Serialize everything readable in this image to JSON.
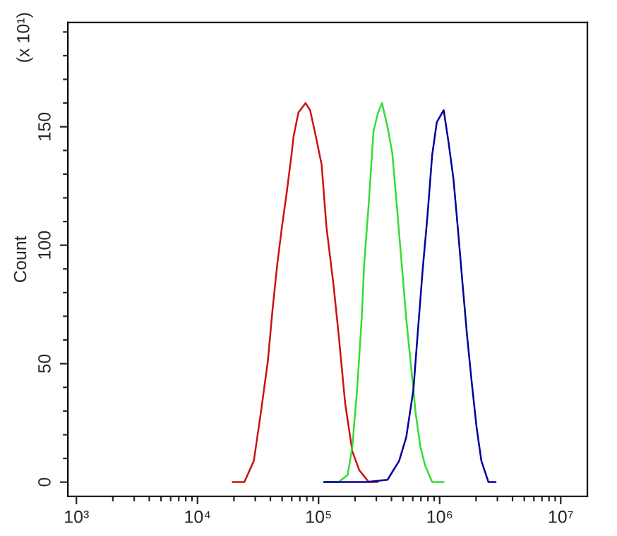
{
  "chart_data": {
    "type": "line",
    "ylabel": "Count",
    "annotations": [
      "(x 10¹)"
    ],
    "log": "x",
    "grid": false,
    "xlim": [
      850,
      16600000
    ],
    "ylim": [
      -6,
      194
    ],
    "xticks": [
      {
        "value": 1000,
        "label": "10³"
      },
      {
        "value": 2000,
        "label": null
      },
      {
        "value": 3000,
        "label": null
      },
      {
        "value": 4000,
        "label": null
      },
      {
        "value": 5000,
        "label": null
      },
      {
        "value": 6000,
        "label": null
      },
      {
        "value": 7000,
        "label": null
      },
      {
        "value": 8000,
        "label": null
      },
      {
        "value": 9000,
        "label": null
      },
      {
        "value": 10000,
        "label": "10⁴"
      },
      {
        "value": 20000,
        "label": null
      },
      {
        "value": 30000,
        "label": null
      },
      {
        "value": 40000,
        "label": null
      },
      {
        "value": 50000,
        "label": null
      },
      {
        "value": 60000,
        "label": null
      },
      {
        "value": 70000,
        "label": null
      },
      {
        "value": 80000,
        "label": null
      },
      {
        "value": 90000,
        "label": null
      },
      {
        "value": 100000,
        "label": "10⁵"
      },
      {
        "value": 200000,
        "label": null
      },
      {
        "value": 300000,
        "label": null
      },
      {
        "value": 400000,
        "label": null
      },
      {
        "value": 500000,
        "label": null
      },
      {
        "value": 600000,
        "label": null
      },
      {
        "value": 700000,
        "label": null
      },
      {
        "value": 800000,
        "label": null
      },
      {
        "value": 900000,
        "label": null
      },
      {
        "value": 1000000,
        "label": "10⁶"
      },
      {
        "value": 2000000,
        "label": null
      },
      {
        "value": 3000000,
        "label": null
      },
      {
        "value": 4000000,
        "label": null
      },
      {
        "value": 5000000,
        "label": null
      },
      {
        "value": 6000000,
        "label": null
      },
      {
        "value": 7000000,
        "label": null
      },
      {
        "value": 8000000,
        "label": null
      },
      {
        "value": 9000000,
        "label": null
      },
      {
        "value": 10000000,
        "label": "10⁷"
      }
    ],
    "yticks": [
      0,
      {
        "value": 10,
        "label": null
      },
      {
        "value": 20,
        "label": null
      },
      {
        "value": 30,
        "label": null
      },
      {
        "value": 40,
        "label": null
      },
      50,
      {
        "value": 60,
        "label": null
      },
      {
        "value": 70,
        "label": null
      },
      {
        "value": 80,
        "label": null
      },
      {
        "value": 90,
        "label": null
      },
      100,
      {
        "value": 110,
        "label": null
      },
      {
        "value": 120,
        "label": null
      },
      {
        "value": 130,
        "label": null
      },
      {
        "value": 140,
        "label": null
      },
      150,
      {
        "value": 160,
        "label": null
      },
      {
        "value": 170,
        "label": null
      },
      {
        "value": 180,
        "label": null
      },
      {
        "value": 190,
        "label": null
      }
    ],
    "series": [
      {
        "color": "#cc1111",
        "x": [
          19500,
          24400,
          29200,
          33300,
          38100,
          41700,
          45600,
          49900,
          54500,
          59700,
          62200,
          68200,
          78000,
          85100,
          93100,
          106000,
          116000,
          133000,
          146000,
          166000,
          190000,
          217000,
          260000,
          308000
        ],
        "values": [
          0,
          0,
          9,
          29,
          51,
          73,
          92,
          108,
          122,
          138,
          146,
          156,
          160,
          157,
          148,
          134,
          108,
          83,
          63,
          33,
          13,
          5,
          0,
          0
        ]
      },
      {
        "color": "#33dd33",
        "x": [
          111000,
          146000,
          174000,
          190000,
          208000,
          227000,
          238000,
          260000,
          284000,
          310000,
          334000,
          371000,
          406000,
          444000,
          486000,
          530000,
          580000,
          634000,
          693000,
          759000,
          867000,
          1080000
        ],
        "values": [
          0,
          0,
          3,
          15,
          39,
          69,
          92,
          118,
          148,
          156,
          160,
          150,
          139,
          116,
          92,
          69,
          49,
          29,
          15,
          7,
          0,
          0
        ]
      },
      {
        "color": "#000099",
        "x": [
          111000,
          248000,
          371000,
          463000,
          530000,
          607000,
          664000,
          725000,
          792000,
          867000,
          948000,
          1080000,
          1180000,
          1300000,
          1420000,
          1550000,
          1690000,
          1850000,
          2020000,
          2210000,
          2530000,
          2900000
        ],
        "values": [
          0,
          0,
          1,
          9,
          19,
          39,
          65,
          90,
          112,
          138,
          152,
          157,
          144,
          128,
          106,
          83,
          61,
          41,
          23,
          9,
          0,
          0
        ]
      }
    ]
  }
}
